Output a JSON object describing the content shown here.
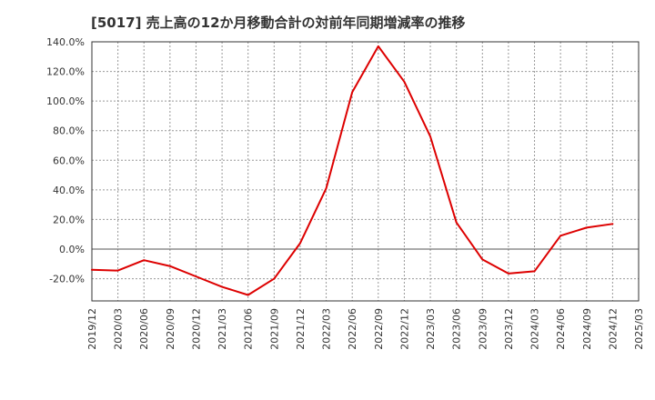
{
  "chart_data": {
    "type": "line",
    "title": "[5017]  売上高の12か月移動合計の対前年同期増減率の推移",
    "xlabel": "",
    "ylabel": "",
    "grid": true,
    "legend": "none",
    "x_tick_labels": [
      "2019/12",
      "2020/03",
      "2020/06",
      "2020/09",
      "2020/12",
      "2021/03",
      "2021/06",
      "2021/09",
      "2021/12",
      "2022/03",
      "2022/06",
      "2022/09",
      "2022/12",
      "2023/03",
      "2023/06",
      "2023/09",
      "2023/12",
      "2024/03",
      "2024/06",
      "2024/09",
      "2024/12",
      "2025/03"
    ],
    "y_tick_labels": [
      "-20.0%",
      "0.0%",
      "20.0%",
      "40.0%",
      "60.0%",
      "80.0%",
      "100.0%",
      "120.0%",
      "140.0%"
    ],
    "y_ticks": [
      -20,
      0,
      20,
      40,
      60,
      80,
      100,
      120,
      140
    ],
    "ylim": [
      -35,
      140
    ],
    "x_index_range": [
      0,
      21
    ],
    "series": [
      {
        "name": "対前年同期増減率",
        "color": "#dd0000",
        "x": [
          "2019/12",
          "2020/03",
          "2020/06",
          "2020/09",
          "2020/12",
          "2021/03",
          "2021/06",
          "2021/09",
          "2021/12",
          "2022/03",
          "2022/06",
          "2022/09",
          "2022/12",
          "2023/03",
          "2023/06",
          "2023/09",
          "2023/12",
          "2024/03",
          "2024/06",
          "2024/09",
          "2024/12"
        ],
        "values": [
          -14,
          -14.5,
          -7.5,
          -11.5,
          -18.5,
          -25.5,
          -31,
          -20,
          4,
          41,
          106,
          137,
          113,
          76,
          18,
          -7,
          -16.5,
          -15,
          9,
          14.5,
          17
        ]
      }
    ]
  }
}
